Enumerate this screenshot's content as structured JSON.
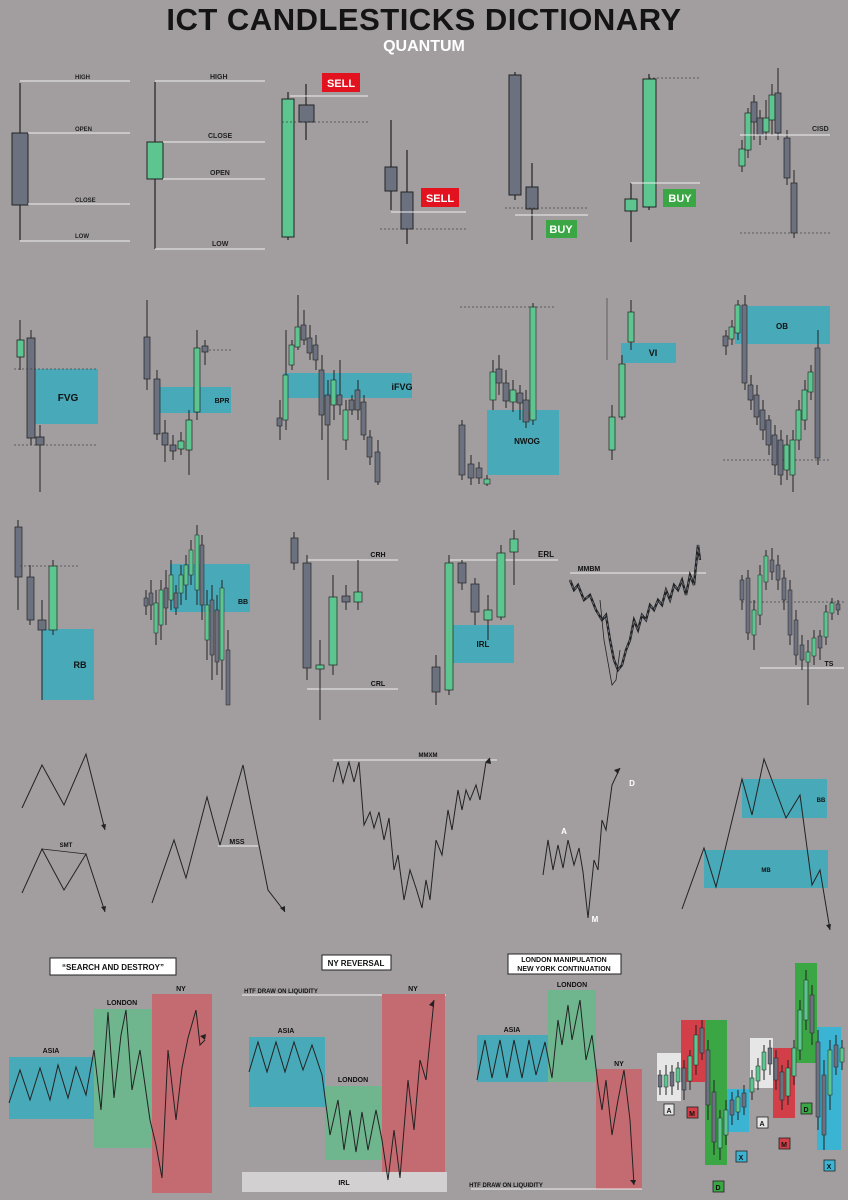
{
  "header": {
    "title": "ICT CANDLESTICKS DICTIONARY",
    "subtitle": "QUANTUM"
  },
  "colors": {
    "background": "#a29e9f",
    "bull": "#5dc58f",
    "bear": "#6c7180",
    "zone": "#48a9b8",
    "sell": "#e2121f",
    "buy": "#3aa744",
    "asia": "#48a9b8",
    "london": "#6fb58e",
    "ny": "#c46a71",
    "irl_bar": "#d2d0d0"
  },
  "row1": {
    "ohlc_bear": {
      "high": "HIGH",
      "open": "OPEN",
      "close": "CLOSE",
      "low": "LOW"
    },
    "ohlc_bull": {
      "high": "HIGH",
      "close": "CLOSE",
      "open": "OPEN",
      "low": "LOW"
    },
    "sell_1": "SELL",
    "sell_2": "SELL",
    "buy_1": "BUY",
    "buy_2": "BUY",
    "cisd": "CISD"
  },
  "row2": {
    "fvg": "FVG",
    "bpr": "BPR",
    "ifvg": "iFVG",
    "nwog": "NWOG",
    "vi": "VI",
    "ob": "OB"
  },
  "row3": {
    "rb": "RB",
    "bb": "BB",
    "crh": "CRH",
    "crl": "CRL",
    "erl": "ERL",
    "irl": "IRL",
    "mmbm": "MMBM",
    "ts": "TS"
  },
  "row4": {
    "smt": "SMT",
    "mss": "MSS",
    "mmxm": "MMXM",
    "a": "A",
    "m": "M",
    "d": "D",
    "bb": "BB",
    "mb": "MB"
  },
  "row5": {
    "search_destroy": {
      "title": "“SEARCH AND DESTROY”",
      "asia": "ASIA",
      "london": "LONDON",
      "ny": "NY"
    },
    "ny_reversal": {
      "title": "NY REVERSAL",
      "htf": "HTF DRAW ON LIQUIDITY",
      "asia": "ASIA",
      "london": "LONDON",
      "ny": "NY",
      "irl": "IRL"
    },
    "london_manipulation": {
      "title_1": "LONDON MANIPULATION",
      "title_2": "NEW YORK CONTINUATION",
      "asia": "ASIA",
      "london": "LONDON",
      "ny": "NY",
      "htf": "HTF DRAW ON LIQUIDITY"
    },
    "amd": {
      "a1": "A",
      "m1": "M",
      "d1": "D",
      "x1": "X",
      "a2": "A",
      "m2": "M",
      "d2": "D",
      "x2": "X"
    }
  }
}
